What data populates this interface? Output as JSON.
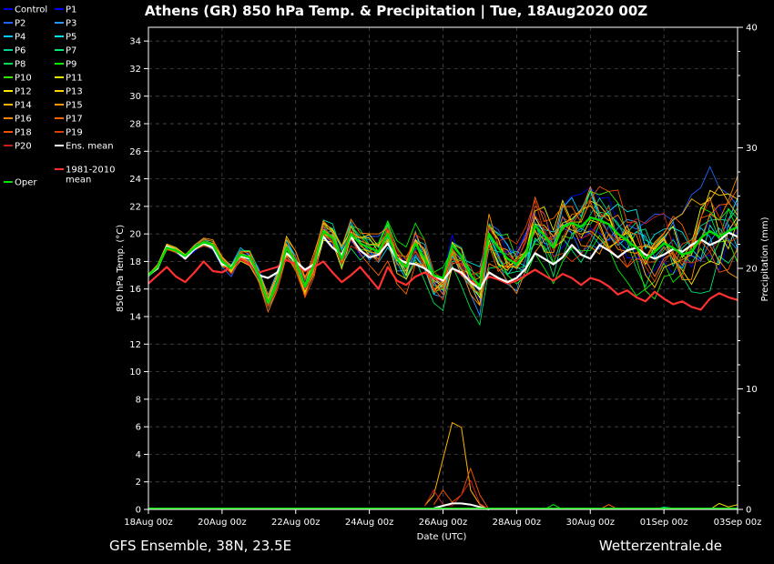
{
  "header": {
    "title": "Athens  (GR)  850 hPa Temp. & Precipitation | Tue, 18Aug2020 00Z"
  },
  "footer": {
    "left": "GFS Ensemble, 38N, 23.5E",
    "right": "Wetterzentrale.de"
  },
  "chart_data": {
    "type": "line",
    "xlabel": "Date (UTC)",
    "ylabel_left": "850 hPa Temp. (°C)",
    "ylabel_right": "Precipitation (mm)",
    "x_start": "18Aug 00z",
    "x_end": "03Sep 00z",
    "x_step_hours": 6,
    "xticks": [
      "18Aug 00z",
      "20Aug 00z",
      "22Aug 00z",
      "24Aug 00z",
      "26Aug 00z",
      "28Aug 00z",
      "30Aug 00z",
      "01Sep 00z",
      "03Sep 00z"
    ],
    "ylim_left": [
      0,
      35
    ],
    "yticks_left": [
      0,
      2,
      4,
      6,
      8,
      10,
      12,
      14,
      16,
      18,
      20,
      22,
      24,
      26,
      28,
      30,
      32,
      34
    ],
    "ylim_right": [
      0,
      40
    ],
    "yticks_right": [
      0,
      10,
      20,
      30,
      40
    ],
    "grid": true,
    "legend_position": "left",
    "legend": [
      {
        "name": "Control",
        "color": "#0000dd"
      },
      {
        "name": "P1",
        "color": "#0000ff"
      },
      {
        "name": "P2",
        "color": "#1e64ff"
      },
      {
        "name": "P3",
        "color": "#2896ff"
      },
      {
        "name": "P4",
        "color": "#00c8ff"
      },
      {
        "name": "P5",
        "color": "#00e6e6"
      },
      {
        "name": "P6",
        "color": "#00d296"
      },
      {
        "name": "P7",
        "color": "#00e678"
      },
      {
        "name": "P8",
        "color": "#00dc50"
      },
      {
        "name": "P9",
        "color": "#00f000"
      },
      {
        "name": "P10",
        "color": "#32e600"
      },
      {
        "name": "P11",
        "color": "#e6f000"
      },
      {
        "name": "P12",
        "color": "#ffe600"
      },
      {
        "name": "P13",
        "color": "#ffd200"
      },
      {
        "name": "P14",
        "color": "#ffb400"
      },
      {
        "name": "P15",
        "color": "#ff9600"
      },
      {
        "name": "P16",
        "color": "#ff8200"
      },
      {
        "name": "P17",
        "color": "#ff6400"
      },
      {
        "name": "P18",
        "color": "#f05000"
      },
      {
        "name": "P19",
        "color": "#dc3c00"
      },
      {
        "name": "P20",
        "color": "#c81e1e"
      },
      {
        "name": "Ens. mean",
        "color": "#ffffff"
      },
      {
        "name": "Oper",
        "color": "#00dd00"
      },
      {
        "name": "1981-2010 mean",
        "color": "#ff3030"
      }
    ],
    "series": [
      {
        "name": "Oper",
        "color": "#00dd00",
        "width": 2.4,
        "values": [
          17,
          17.6,
          19,
          18.8,
          18.4,
          19,
          19.4,
          19.2,
          18,
          17.5,
          18.5,
          18.3,
          17,
          15,
          16.5,
          19,
          18,
          16.2,
          17.8,
          20.2,
          19.7,
          18.2,
          20,
          19.3,
          19,
          18.7,
          20,
          18.2,
          17.6,
          19.3,
          18.2,
          17,
          16.8,
          19.2,
          18.4,
          17,
          16.2,
          20,
          19,
          18.2,
          17.8,
          18.6,
          20.6,
          19.9,
          19,
          20.5,
          20.8,
          20.5,
          21.2,
          21,
          20.7,
          20,
          19.5,
          19,
          18.2,
          18.7,
          19.3,
          19,
          18.5,
          18.7,
          19.7,
          20.2,
          19.8,
          20.2,
          20.5
        ]
      },
      {
        "name": "Ens. mean",
        "color": "#ffffff",
        "width": 2.2,
        "values": [
          17,
          17.5,
          19.1,
          18.8,
          18.2,
          18.9,
          19.3,
          19,
          17.8,
          17.6,
          18.4,
          18.2,
          17,
          16.8,
          17.2,
          18.6,
          18,
          17.4,
          17.8,
          19.8,
          19,
          18.5,
          19.8,
          18.8,
          18.3,
          18.5,
          19.3,
          18.2,
          17.9,
          17.8,
          17.5,
          17,
          16.6,
          17.5,
          17.2,
          16.5,
          16,
          17.2,
          16.8,
          16.5,
          16.8,
          17.5,
          18.6,
          18.2,
          17.8,
          18.3,
          19.2,
          18.5,
          18.2,
          19.2,
          18.8,
          18.3,
          18.8,
          19,
          18.5,
          18.2,
          18.5,
          18.9,
          18.7,
          19.2,
          19.6,
          19.2,
          19.5,
          20.1,
          19.8
        ]
      },
      {
        "name": "1981-2010 mean",
        "color": "#ff3030",
        "width": 2.2,
        "values": [
          16.4,
          17,
          17.6,
          16.9,
          16.5,
          17.2,
          18,
          17.3,
          17.2,
          17.6,
          18.2,
          17.8,
          17.2,
          17.4,
          17.6,
          18.1,
          17.8,
          17.3,
          17.6,
          18,
          17.2,
          16.5,
          17,
          17.6,
          16.8,
          16,
          17.6,
          16.6,
          16.3,
          16.9,
          17.2,
          16.8,
          16.6,
          17.5,
          17.1,
          16.6,
          16.3,
          16.9,
          16.7,
          16.4,
          16.6,
          17,
          17.4,
          17,
          16.6,
          17.1,
          16.8,
          16.3,
          16.8,
          16.6,
          16.2,
          15.6,
          15.9,
          15.4,
          15.1,
          15.8,
          15.3,
          14.9,
          15.1,
          14.7,
          14.5,
          15.3,
          15.7,
          15.4,
          15.2
        ]
      }
    ],
    "precip_series": [
      {
        "name": "P14",
        "color": "#ffb400",
        "values": [
          [
            30,
            0.3
          ],
          [
            31,
            1.2
          ],
          [
            32,
            4.2
          ],
          [
            33,
            7.2
          ],
          [
            34,
            6.8
          ],
          [
            35,
            1.6
          ],
          [
            36,
            0.4
          ],
          [
            37,
            0
          ]
        ]
      },
      {
        "name": "P18",
        "color": "#f05000",
        "values": [
          [
            31,
            0.4
          ],
          [
            32,
            1.6
          ],
          [
            33,
            0.6
          ],
          [
            34,
            1.2
          ],
          [
            35,
            3.4
          ],
          [
            36,
            1.2
          ],
          [
            37,
            0
          ]
        ]
      },
      {
        "name": "P20",
        "color": "#c81e1e",
        "values": [
          [
            30,
            0.3
          ],
          [
            31,
            1.6
          ],
          [
            32,
            0.4
          ],
          [
            33,
            0.3
          ],
          [
            34,
            1.2
          ],
          [
            35,
            2.4
          ],
          [
            36,
            0.5
          ],
          [
            37,
            0
          ]
        ]
      },
      {
        "name": "Ens. mean",
        "color": "#ffffff",
        "values": [
          [
            31,
            0.1
          ],
          [
            32,
            0.3
          ],
          [
            33,
            0.5
          ],
          [
            34,
            0.5
          ],
          [
            35,
            0.4
          ],
          [
            36,
            0.2
          ],
          [
            37,
            0
          ]
        ]
      },
      {
        "name": "P9",
        "color": "#00f000",
        "values": [
          [
            43,
            0
          ],
          [
            44,
            0.4
          ],
          [
            45,
            0
          ]
        ]
      },
      {
        "name": "P17",
        "color": "#ff6400",
        "values": [
          [
            49,
            0
          ],
          [
            50,
            0.4
          ],
          [
            51,
            0
          ]
        ]
      },
      {
        "name": "P12",
        "color": "#ffe600",
        "values": [
          [
            61,
            0
          ],
          [
            62,
            0.5
          ],
          [
            63,
            0.2
          ],
          [
            64,
            0.4
          ]
        ]
      },
      {
        "name": "P6",
        "color": "#00d296",
        "values": [
          [
            55,
            0
          ],
          [
            56,
            0.2
          ],
          [
            57,
            0.1
          ],
          [
            58,
            0
          ]
        ]
      }
    ]
  }
}
